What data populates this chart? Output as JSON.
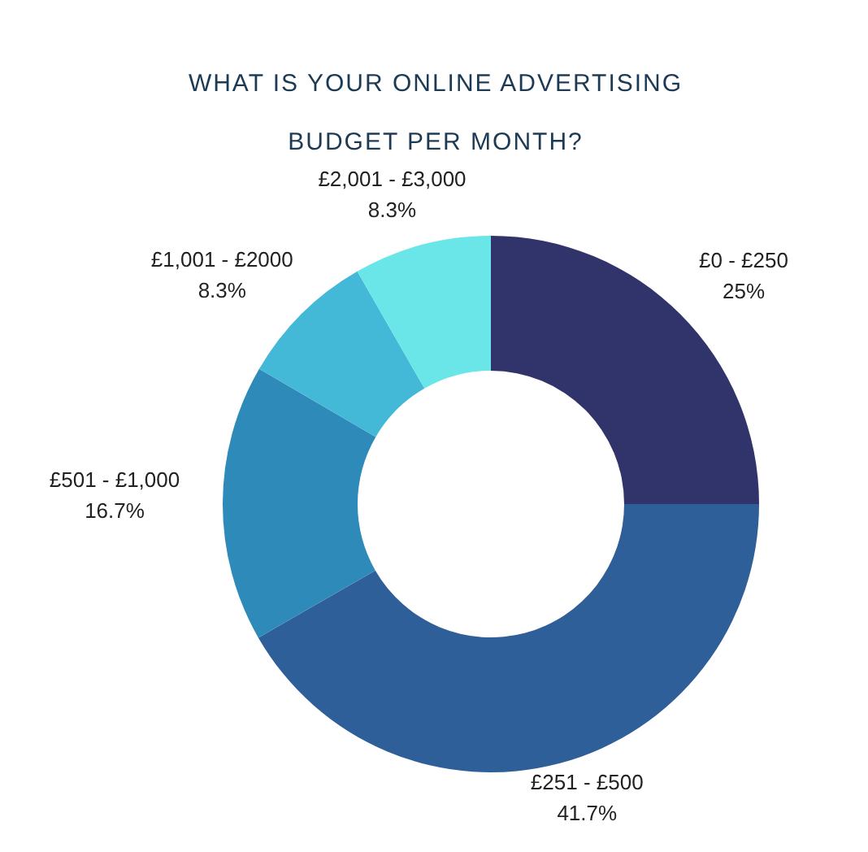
{
  "chart_data": {
    "type": "donut",
    "title": "WHAT IS YOUR ONLINE ADVERTISING BUDGET PER MONTH?",
    "categories": [
      "£0 - £250",
      "£251 - £500",
      "£501 - £1,000",
      "£1,001 - £2000",
      "£2,001 - £3,000"
    ],
    "values": [
      25,
      41.7,
      16.7,
      8.3,
      8.3
    ],
    "value_labels": [
      "25%",
      "41.7%",
      "16.7%",
      "8.3%",
      "8.3%"
    ],
    "colors": [
      "#31336b",
      "#2e5f98",
      "#2e8ab8",
      "#44b8d7",
      "#6ae5e8"
    ]
  }
}
